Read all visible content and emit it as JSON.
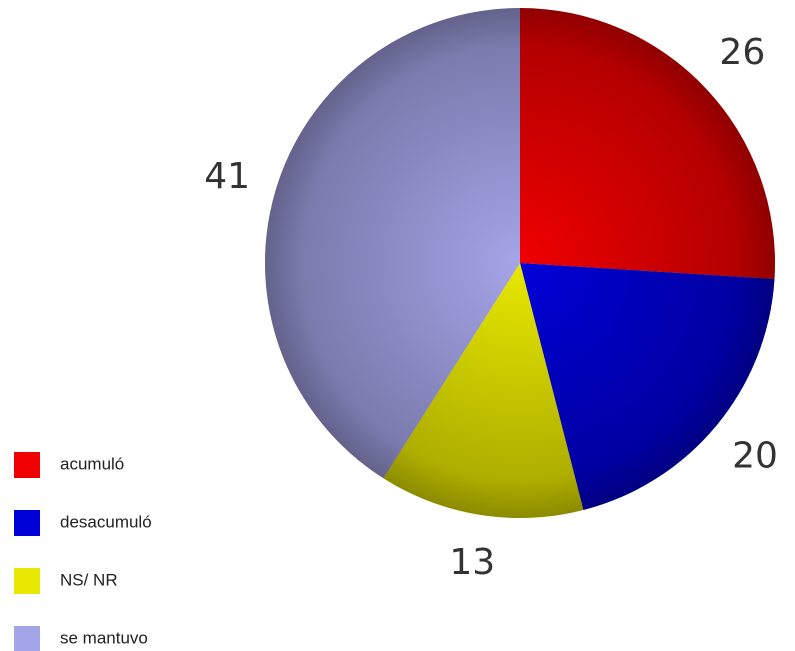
{
  "chart_data": {
    "type": "pie",
    "series": [
      {
        "name": "acumuló",
        "color": "#f00000",
        "values": [
          26
        ]
      },
      {
        "name": "desacumuló",
        "color": "#0000d8",
        "values": [
          20
        ]
      },
      {
        "name": "NS/ NR",
        "color": "#e8e800",
        "values": [
          13
        ]
      },
      {
        "name": "se mantuvo",
        "color": "#a4a4e8",
        "values": [
          41
        ]
      }
    ]
  }
}
